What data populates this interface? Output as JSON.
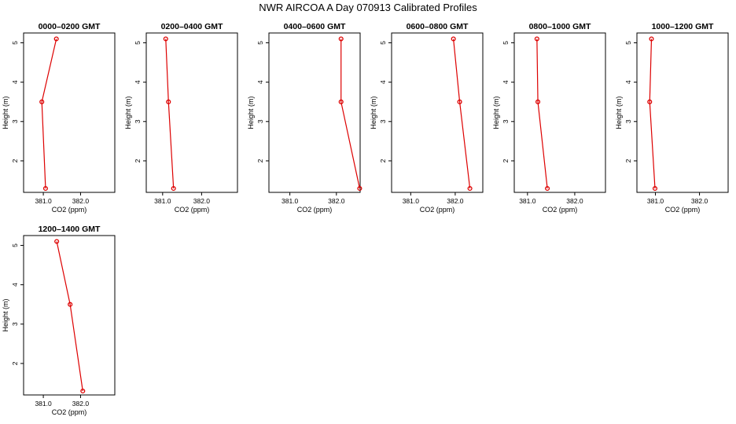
{
  "figure": {
    "title": "NWR AIRCOA A  Day 070913  Calibrated Profiles"
  },
  "chart_data": [
    {
      "type": "line",
      "title": "0000–0200 GMT",
      "xlabel": "CO2 (ppm)",
      "ylabel": "Height (m)",
      "xlim": [
        380.47,
        382.92
      ],
      "ylim": [
        1.2,
        5.25
      ],
      "xticks": [
        381.0,
        382.0
      ],
      "xtick_labels": [
        "381.0",
        "382.0"
      ],
      "yticks": [
        2,
        3,
        4,
        5
      ],
      "ytick_labels": [
        "2",
        "3",
        "4",
        "5"
      ],
      "grid": false,
      "series": [
        {
          "color": "#dd0000",
          "marker": "circle-open",
          "x": [
            381.06,
            380.96,
            381.35
          ],
          "y": [
            1.3,
            3.5,
            5.1
          ]
        }
      ]
    },
    {
      "type": "line",
      "title": "0200–0400 GMT",
      "xlabel": "CO2 (ppm)",
      "ylabel": "Height (m)",
      "xlim": [
        380.58,
        382.92
      ],
      "ylim": [
        1.2,
        5.25
      ],
      "xticks": [
        381.0,
        382.0
      ],
      "xtick_labels": [
        "381.0",
        "382.0"
      ],
      "yticks": [
        2,
        3,
        4,
        5
      ],
      "ytick_labels": [
        "2",
        "3",
        "4",
        "5"
      ],
      "grid": false,
      "series": [
        {
          "color": "#dd0000",
          "marker": "circle-open",
          "x": [
            381.08,
            381.15,
            381.28
          ],
          "y": [
            5.1,
            3.5,
            1.3
          ]
        }
      ]
    },
    {
      "type": "line",
      "title": "0400–0600 GMT",
      "xlabel": "CO2 (ppm)",
      "ylabel": "Height (m)",
      "xlim": [
        380.55,
        382.51
      ],
      "ylim": [
        1.2,
        5.25
      ],
      "xticks": [
        381.0,
        382.0
      ],
      "xtick_labels": [
        "381.0",
        "382.0"
      ],
      "yticks": [
        2,
        3,
        4,
        5
      ],
      "ytick_labels": [
        "2",
        "3",
        "4",
        "5"
      ],
      "grid": false,
      "series": [
        {
          "color": "#dd0000",
          "marker": "circle-open",
          "x": [
            382.1,
            382.1,
            382.5
          ],
          "y": [
            5.1,
            3.5,
            1.3
          ]
        }
      ]
    },
    {
      "type": "line",
      "title": "0600–0800 GMT",
      "xlabel": "CO2 (ppm)",
      "ylabel": "Height (m)",
      "xlim": [
        380.57,
        382.62
      ],
      "ylim": [
        1.2,
        5.25
      ],
      "xticks": [
        381.0,
        382.0
      ],
      "xtick_labels": [
        "381.0",
        "382.0"
      ],
      "yticks": [
        2,
        3,
        4,
        5
      ],
      "ytick_labels": [
        "2",
        "3",
        "4",
        "5"
      ],
      "grid": false,
      "series": [
        {
          "color": "#dd0000",
          "marker": "circle-open",
          "x": [
            381.96,
            382.1,
            382.33
          ],
          "y": [
            5.1,
            3.5,
            1.3
          ]
        }
      ]
    },
    {
      "type": "line",
      "title": "0800–1000 GMT",
      "xlabel": "CO2 (ppm)",
      "ylabel": "Height (m)",
      "xlim": [
        380.72,
        382.65
      ],
      "ylim": [
        1.2,
        5.25
      ],
      "xticks": [
        381.0,
        382.0
      ],
      "xtick_labels": [
        "381.0",
        "382.0"
      ],
      "yticks": [
        2,
        3,
        4,
        5
      ],
      "ytick_labels": [
        "2",
        "3",
        "4",
        "5"
      ],
      "grid": false,
      "series": [
        {
          "color": "#dd0000",
          "marker": "circle-open",
          "x": [
            381.2,
            381.22,
            381.42
          ],
          "y": [
            5.1,
            3.5,
            1.3
          ]
        }
      ]
    },
    {
      "type": "line",
      "title": "1000–1200 GMT",
      "xlabel": "CO2 (ppm)",
      "ylabel": "Height (m)",
      "xlim": [
        380.58,
        382.65
      ],
      "ylim": [
        1.2,
        5.25
      ],
      "xticks": [
        381.0,
        382.0
      ],
      "xtick_labels": [
        "381.0",
        "382.0"
      ],
      "yticks": [
        2,
        3,
        4,
        5
      ],
      "ytick_labels": [
        "2",
        "3",
        "4",
        "5"
      ],
      "grid": false,
      "series": [
        {
          "color": "#dd0000",
          "marker": "circle-open",
          "x": [
            380.91,
            380.87,
            380.99
          ],
          "y": [
            5.1,
            3.5,
            1.3
          ]
        }
      ]
    },
    {
      "type": "line",
      "title": "1200–1400 GMT",
      "xlabel": "CO2 (ppm)",
      "ylabel": "Height (m)",
      "xlim": [
        380.47,
        382.92
      ],
      "ylim": [
        1.2,
        5.25
      ],
      "xticks": [
        381.0,
        382.0
      ],
      "xtick_labels": [
        "381.0",
        "382.0"
      ],
      "yticks": [
        2,
        3,
        4,
        5
      ],
      "ytick_labels": [
        "2",
        "3",
        "4",
        "5"
      ],
      "grid": false,
      "series": [
        {
          "color": "#dd0000",
          "marker": "circle-open",
          "x": [
            381.36,
            381.72,
            382.06
          ],
          "y": [
            5.1,
            3.5,
            1.3
          ]
        }
      ]
    }
  ]
}
